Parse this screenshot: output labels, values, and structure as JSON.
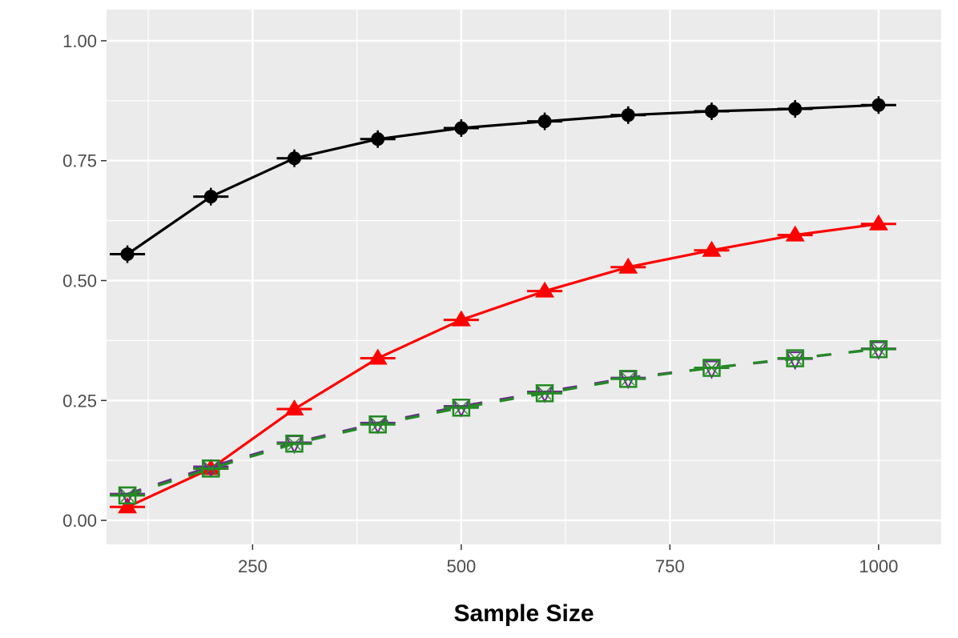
{
  "chart_data": {
    "type": "line",
    "title": "",
    "xlabel": "Sample Size",
    "ylabel": "",
    "xlim": [
      75,
      1075
    ],
    "ylim": [
      -0.05,
      1.065
    ],
    "x_ticks": [
      250,
      500,
      750,
      1000
    ],
    "x_tick_labels": [
      "250",
      "500",
      "750",
      "1000"
    ],
    "y_ticks": [
      0,
      0.25,
      0.5,
      0.75,
      1.0
    ],
    "y_tick_labels": [
      "0.00",
      "0.25",
      "0.50",
      "0.75",
      "1.00"
    ],
    "grid": true,
    "legend": "none",
    "x": [
      100,
      200,
      300,
      400,
      500,
      600,
      700,
      800,
      900,
      1000
    ],
    "series": [
      {
        "color": "#000000",
        "line_style": "solid",
        "marker": "circle-cross",
        "values": [
          0.555,
          0.675,
          0.755,
          0.795,
          0.818,
          0.832,
          0.845,
          0.853,
          0.858,
          0.866
        ]
      },
      {
        "color": "#ff0000",
        "line_style": "solid",
        "marker": "triangle",
        "values": [
          0.028,
          0.108,
          0.232,
          0.338,
          0.418,
          0.478,
          0.528,
          0.563,
          0.595,
          0.618
        ]
      },
      {
        "color": "#6a2c8c",
        "line_style": "dashed",
        "marker": "triangle-down",
        "values": [
          0.055,
          0.112,
          0.162,
          0.203,
          0.238,
          0.268,
          0.297,
          0.318,
          0.337,
          0.358
        ]
      },
      {
        "color": "#228b22",
        "line_style": "dashed",
        "marker": "square",
        "values": [
          0.052,
          0.108,
          0.16,
          0.2,
          0.235,
          0.265,
          0.295,
          0.318,
          0.338,
          0.357
        ]
      }
    ]
  }
}
